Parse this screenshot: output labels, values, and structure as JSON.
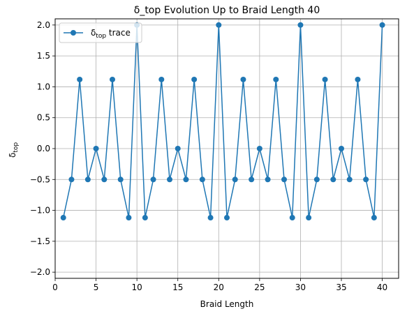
{
  "chart_data": {
    "type": "line",
    "title": "δ_top Evolution Up to Braid Length 40",
    "xlabel": "Braid Length",
    "ylabel_base": "δ",
    "ylabel_sub": "top",
    "xlim": [
      0,
      42
    ],
    "ylim": [
      -2.1,
      2.1
    ],
    "xticks": [
      0,
      5,
      10,
      15,
      20,
      25,
      30,
      35,
      40
    ],
    "yticks": [
      -2.0,
      -1.5,
      -1.0,
      -0.5,
      0.0,
      0.5,
      1.0,
      1.5,
      2.0
    ],
    "xtick_labels": [
      "0",
      "5",
      "10",
      "15",
      "20",
      "25",
      "30",
      "35",
      "40"
    ],
    "ytick_labels": [
      "−2.0",
      "−1.5",
      "−1.0",
      "−0.5",
      "0.0",
      "0.5",
      "1.0",
      "1.5",
      "2.0"
    ],
    "grid": true,
    "legend_position": "top-left",
    "series": [
      {
        "name_base": "δ",
        "name_sub": "top",
        "name_suffix": " trace",
        "color": "#1f77b4",
        "marker": "circle",
        "x": [
          1,
          2,
          3,
          4,
          5,
          6,
          7,
          8,
          9,
          10,
          11,
          12,
          13,
          14,
          15,
          16,
          17,
          18,
          19,
          20,
          21,
          22,
          23,
          24,
          25,
          26,
          27,
          28,
          29,
          30,
          31,
          32,
          33,
          34,
          35,
          36,
          37,
          38,
          39,
          40
        ],
        "y": [
          -1.118,
          -0.5,
          1.118,
          -0.5,
          0,
          -0.5,
          1.118,
          -0.5,
          -1.118,
          2,
          -1.118,
          -0.5,
          1.118,
          -0.5,
          0,
          -0.5,
          1.118,
          -0.5,
          -1.118,
          2,
          -1.118,
          -0.5,
          1.118,
          -0.5,
          0,
          -0.5,
          1.118,
          -0.5,
          -1.118,
          2,
          -1.118,
          -0.5,
          1.118,
          -0.5,
          0,
          -0.5,
          1.118,
          -0.5,
          -1.118,
          2
        ]
      }
    ]
  }
}
